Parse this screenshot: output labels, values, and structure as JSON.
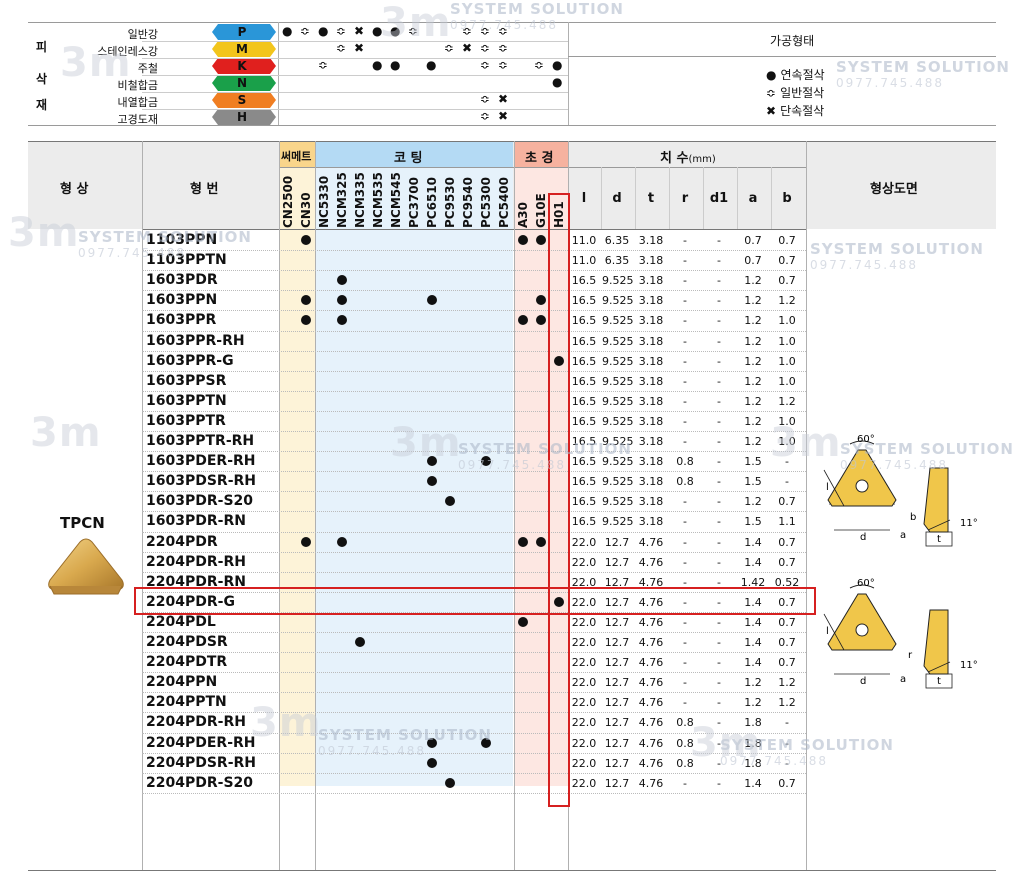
{
  "materials": {
    "side_label": [
      "피",
      "삭",
      "재"
    ],
    "rows": [
      {
        "name": "일반강",
        "code": "P",
        "color": "#2a96d8"
      },
      {
        "name": "스테인레스강",
        "code": "M",
        "color": "#f2c51c"
      },
      {
        "name": "주철",
        "code": "K",
        "color": "#e0201e"
      },
      {
        "name": "비철합금",
        "code": "N",
        "color": "#1aa04a"
      },
      {
        "name": "내열합금",
        "code": "S",
        "color": "#f07e22"
      },
      {
        "name": "고경도재",
        "code": "H",
        "color": "#8a8a8a"
      }
    ],
    "machining_title": "가공형태",
    "legend": [
      {
        "symbol": "●",
        "label": "연속절삭"
      },
      {
        "symbol": "≎",
        "label": "일반절삭"
      },
      {
        "symbol": "✖",
        "label": "단속절삭"
      }
    ]
  },
  "table": {
    "shape_header": "형 상",
    "code_header": "형 번",
    "group_cermet": "써메트",
    "group_coating": "코 팅",
    "group_carbide": "초 경",
    "group_dims": "치 수",
    "dims_unit": "(mm)",
    "drawing_header": "형상도면",
    "grade_columns": [
      "CN2500",
      "CN30",
      "NC5330",
      "NCM325",
      "NCM335",
      "NCM535",
      "NCM545",
      "PC3700",
      "PC6510",
      "PC9530",
      "PC9540",
      "PC5300",
      "PC5400",
      "A30",
      "G10E",
      "H01"
    ],
    "dim_columns": [
      "l",
      "d",
      "t",
      "r",
      "d1",
      "a",
      "b"
    ],
    "insert_name": "TPCN",
    "rows": [
      {
        "code": "1103PPN",
        "dots": [
          1,
          13,
          14
        ],
        "dims": [
          "11.0",
          "6.35",
          "3.18",
          "-",
          "-",
          "0.7",
          "0.7"
        ]
      },
      {
        "code": "1103PPTN",
        "dots": [],
        "dims": [
          "11.0",
          "6.35",
          "3.18",
          "-",
          "-",
          "0.7",
          "0.7"
        ]
      },
      {
        "code": "1603PDR",
        "dots": [
          3
        ],
        "dims": [
          "16.5",
          "9.525",
          "3.18",
          "-",
          "-",
          "1.2",
          "0.7"
        ]
      },
      {
        "code": "1603PPN",
        "dots": [
          1,
          3,
          8,
          14
        ],
        "dims": [
          "16.5",
          "9.525",
          "3.18",
          "-",
          "-",
          "1.2",
          "1.2"
        ]
      },
      {
        "code": "1603PPR",
        "dots": [
          1,
          3,
          13,
          14
        ],
        "dims": [
          "16.5",
          "9.525",
          "3.18",
          "-",
          "-",
          "1.2",
          "1.0"
        ]
      },
      {
        "code": "1603PPR-RH",
        "dots": [],
        "dims": [
          "16.5",
          "9.525",
          "3.18",
          "-",
          "-",
          "1.2",
          "1.0"
        ]
      },
      {
        "code": "1603PPR-G",
        "dots": [
          15
        ],
        "dims": [
          "16.5",
          "9.525",
          "3.18",
          "-",
          "-",
          "1.2",
          "1.0"
        ]
      },
      {
        "code": "1603PPSR",
        "dots": [],
        "dims": [
          "16.5",
          "9.525",
          "3.18",
          "-",
          "-",
          "1.2",
          "1.0"
        ]
      },
      {
        "code": "1603PPTN",
        "dots": [],
        "dims": [
          "16.5",
          "9.525",
          "3.18",
          "-",
          "-",
          "1.2",
          "1.2"
        ]
      },
      {
        "code": "1603PPTR",
        "dots": [],
        "dims": [
          "16.5",
          "9.525",
          "3.18",
          "-",
          "-",
          "1.2",
          "1.0"
        ]
      },
      {
        "code": "1603PPTR-RH",
        "dots": [],
        "dims": [
          "16.5",
          "9.525",
          "3.18",
          "-",
          "-",
          "1.2",
          "1.0"
        ]
      },
      {
        "code": "1603PDER-RH",
        "dots": [
          8,
          11
        ],
        "dims": [
          "16.5",
          "9.525",
          "3.18",
          "0.8",
          "-",
          "1.5",
          "-"
        ]
      },
      {
        "code": "1603PDSR-RH",
        "dots": [
          8
        ],
        "dims": [
          "16.5",
          "9.525",
          "3.18",
          "0.8",
          "-",
          "1.5",
          "-"
        ]
      },
      {
        "code": "1603PDR-S20",
        "dots": [
          9
        ],
        "dims": [
          "16.5",
          "9.525",
          "3.18",
          "-",
          "-",
          "1.2",
          "0.7"
        ]
      },
      {
        "code": "1603PDR-RN",
        "dots": [],
        "dims": [
          "16.5",
          "9.525",
          "3.18",
          "-",
          "-",
          "1.5",
          "1.1"
        ]
      },
      {
        "code": "2204PDR",
        "dots": [
          1,
          3,
          13,
          14
        ],
        "dims": [
          "22.0",
          "12.7",
          "4.76",
          "-",
          "-",
          "1.4",
          "0.7"
        ]
      },
      {
        "code": "2204PDR-RH",
        "dots": [],
        "dims": [
          "22.0",
          "12.7",
          "4.76",
          "-",
          "-",
          "1.4",
          "0.7"
        ]
      },
      {
        "code": "2204PDR-RN",
        "dots": [],
        "dims": [
          "22.0",
          "12.7",
          "4.76",
          "-",
          "-",
          "1.42",
          "0.52"
        ]
      },
      {
        "code": "2204PDR-G",
        "dots": [
          15
        ],
        "dims": [
          "22.0",
          "12.7",
          "4.76",
          "-",
          "-",
          "1.4",
          "0.7"
        ]
      },
      {
        "code": "2204PDL",
        "dots": [
          13
        ],
        "dims": [
          "22.0",
          "12.7",
          "4.76",
          "-",
          "-",
          "1.4",
          "0.7"
        ]
      },
      {
        "code": "2204PDSR",
        "dots": [
          4
        ],
        "dims": [
          "22.0",
          "12.7",
          "4.76",
          "-",
          "-",
          "1.4",
          "0.7"
        ]
      },
      {
        "code": "2204PDTR",
        "dots": [],
        "dims": [
          "22.0",
          "12.7",
          "4.76",
          "-",
          "-",
          "1.4",
          "0.7"
        ]
      },
      {
        "code": "2204PPN",
        "dots": [],
        "dims": [
          "22.0",
          "12.7",
          "4.76",
          "-",
          "-",
          "1.2",
          "1.2"
        ]
      },
      {
        "code": "2204PPTN",
        "dots": [],
        "dims": [
          "22.0",
          "12.7",
          "4.76",
          "-",
          "-",
          "1.2",
          "1.2"
        ]
      },
      {
        "code": "2204PDR-RH",
        "dots": [],
        "dims": [
          "22.0",
          "12.7",
          "4.76",
          "0.8",
          "-",
          "1.8",
          "-"
        ]
      },
      {
        "code": "2204PDER-RH",
        "dots": [
          8,
          11
        ],
        "dims": [
          "22.0",
          "12.7",
          "4.76",
          "0.8",
          "-",
          "1.8",
          "-"
        ]
      },
      {
        "code": "2204PDSR-RH",
        "dots": [
          8
        ],
        "dims": [
          "22.0",
          "12.7",
          "4.76",
          "0.8",
          "-",
          "1.8",
          "-"
        ]
      },
      {
        "code": "2204PDR-S20",
        "dots": [
          9
        ],
        "dims": [
          "22.0",
          "12.7",
          "4.76",
          "-",
          "-",
          "1.4",
          "0.7"
        ]
      }
    ]
  },
  "drawing": {
    "angle": "60°",
    "clearance": "11°",
    "labels": [
      "l",
      "b",
      "d",
      "a",
      "t",
      "r"
    ]
  },
  "watermark": {
    "text": "SYSTEM SOLUTION",
    "phone": "0977.745.488",
    "logo": "3m"
  }
}
